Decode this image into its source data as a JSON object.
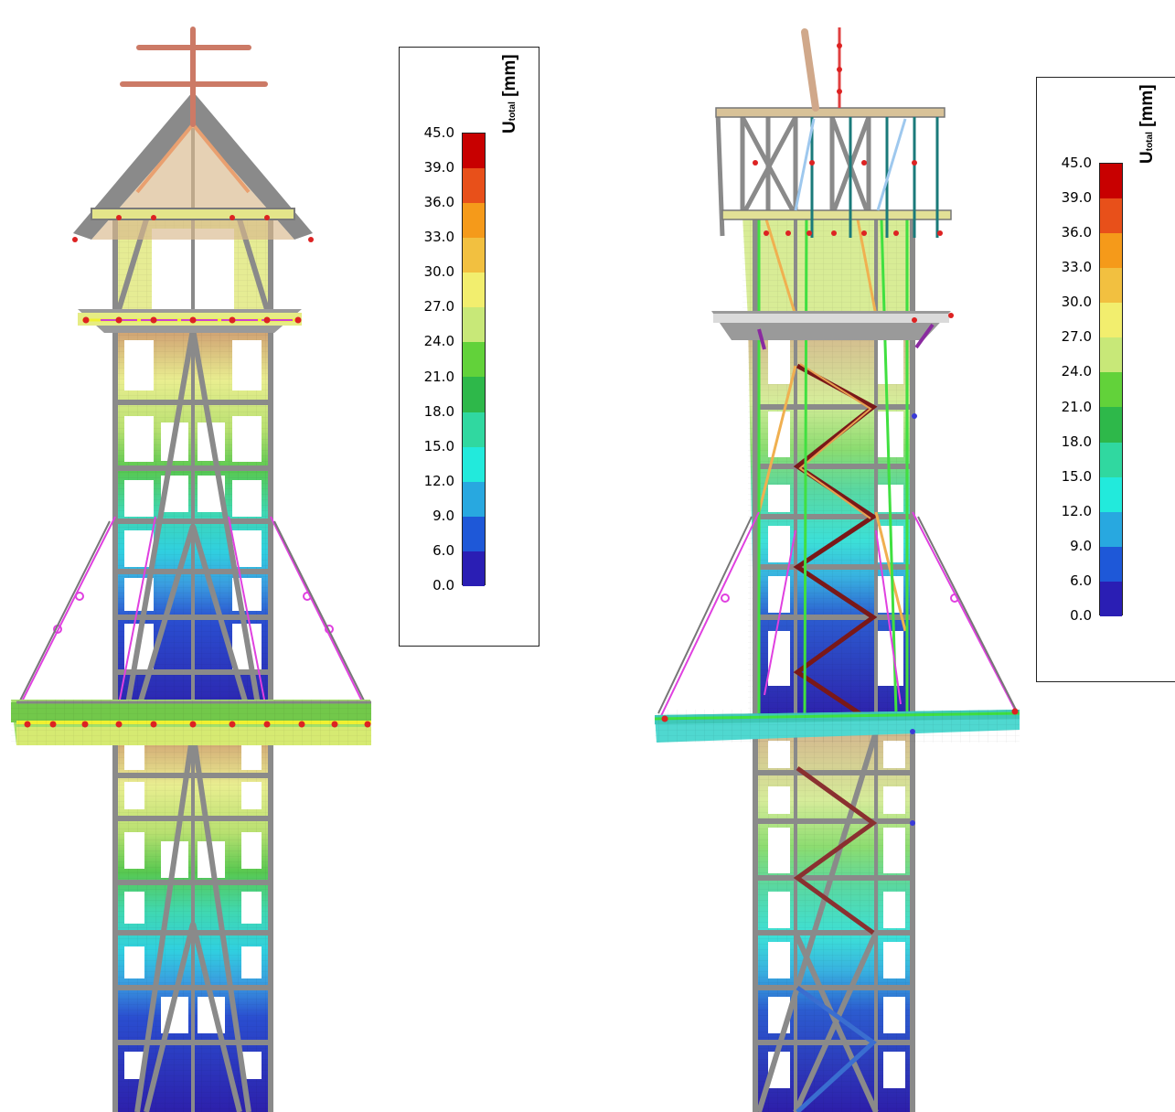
{
  "legend": {
    "title_main": "U",
    "title_sub": "total",
    "title_unit": "[mm]",
    "ticks": [
      "45.0",
      "39.0",
      "36.0",
      "33.0",
      "30.0",
      "27.0",
      "24.0",
      "21.0",
      "18.0",
      "15.0",
      "12.0",
      "9.0",
      "6.0",
      "0.0"
    ],
    "colors": [
      "#c80000",
      "#e8501a",
      "#f59a1a",
      "#f2c040",
      "#f2ee6e",
      "#c8e878",
      "#62d23a",
      "#2eb84a",
      "#30d8a0",
      "#22eadc",
      "#28a8e0",
      "#1e58d8",
      "#2a1eb4"
    ]
  },
  "model_left": {
    "view": "front"
  },
  "model_right": {
    "view": "side"
  }
}
